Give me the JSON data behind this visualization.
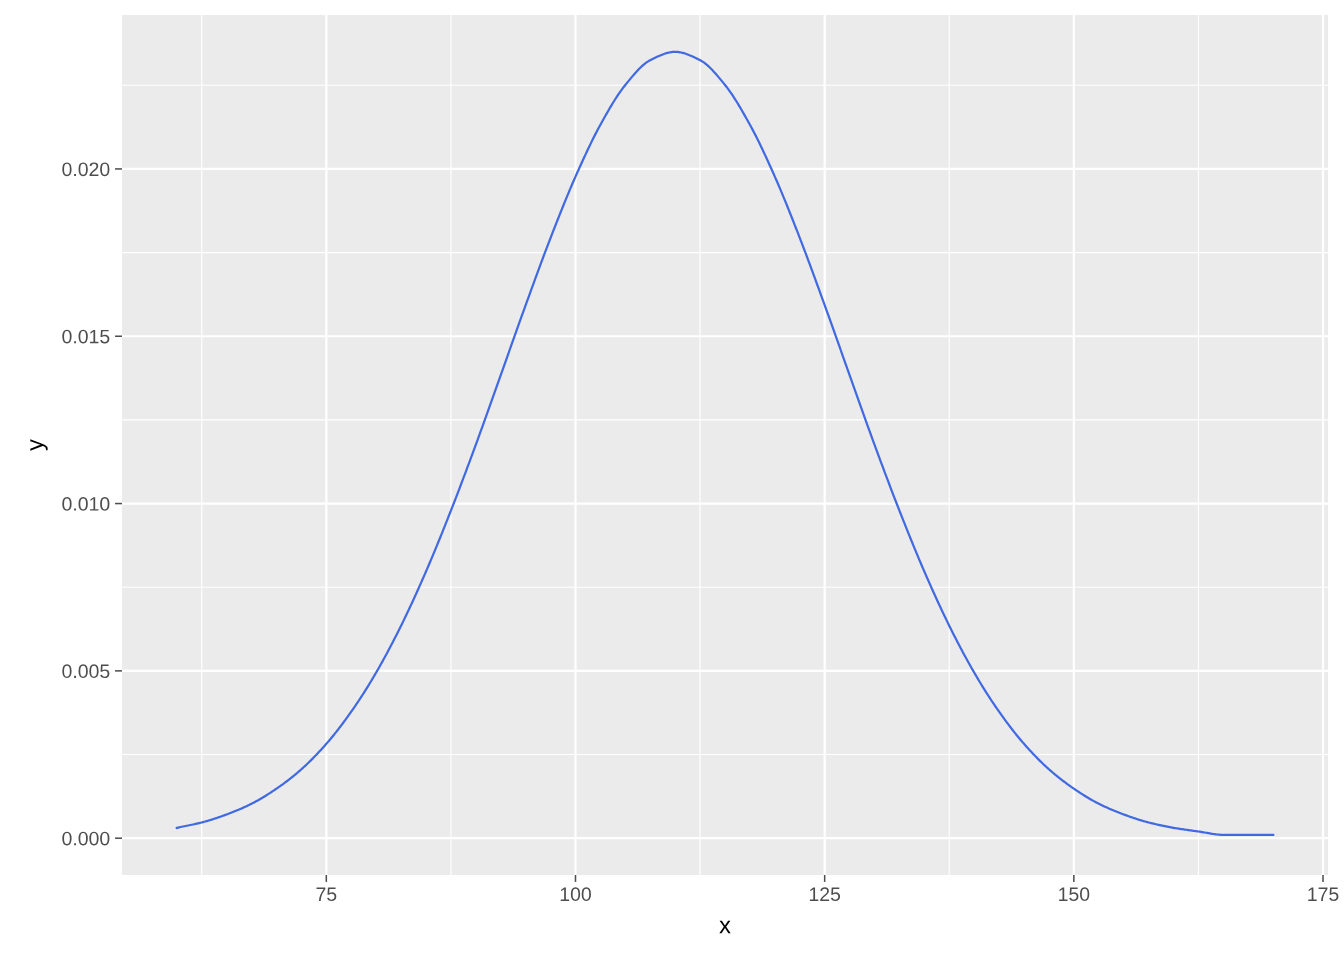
{
  "chart_data": {
    "type": "line",
    "xlabel": "x",
    "ylabel": "y",
    "x": [
      60,
      62.5,
      65,
      67.5,
      70,
      72.5,
      75,
      77.5,
      80,
      82.5,
      85,
      87.5,
      90,
      92.5,
      95,
      97.5,
      100,
      102.5,
      105,
      107.5,
      110,
      112.5,
      115,
      117.5,
      120,
      122.5,
      125,
      127.5,
      130,
      132.5,
      135,
      137.5,
      140,
      142.5,
      145,
      147.5,
      150,
      152.5,
      155,
      157.5,
      160,
      162.5,
      165,
      167.5,
      170
    ],
    "series": [
      {
        "color": "#4169e1",
        "values": [
          0.00031,
          0.00047,
          0.00071,
          0.00103,
          0.00148,
          0.00206,
          0.00282,
          0.00378,
          0.00495,
          0.00635,
          0.00797,
          0.00979,
          0.01176,
          0.01384,
          0.01593,
          0.01794,
          0.01977,
          0.02132,
          0.02251,
          0.02325,
          0.0235,
          0.02325,
          0.02251,
          0.02132,
          0.01977,
          0.01794,
          0.01593,
          0.01384,
          0.01176,
          0.00979,
          0.00797,
          0.00635,
          0.00495,
          0.00378,
          0.00282,
          0.00206,
          0.00148,
          0.00103,
          0.00071,
          0.00047,
          0.00031,
          0.0002,
          0.0001,
          0.0001,
          0.0001
        ]
      }
    ],
    "xlim": [
      54.5,
      175.5
    ],
    "xticks": [
      75,
      100,
      125,
      150,
      175
    ],
    "ylim": [
      -0.0011,
      0.0246
    ],
    "yticks": [
      {
        "value": 0,
        "label": "0.000"
      },
      {
        "value": 0.005,
        "label": "0.005"
      },
      {
        "value": 0.01,
        "label": "0.010"
      },
      {
        "value": 0.015,
        "label": "0.015"
      },
      {
        "value": 0.02,
        "label": "0.020"
      }
    ],
    "grid": true,
    "marker": "none",
    "line_style": "solid"
  }
}
